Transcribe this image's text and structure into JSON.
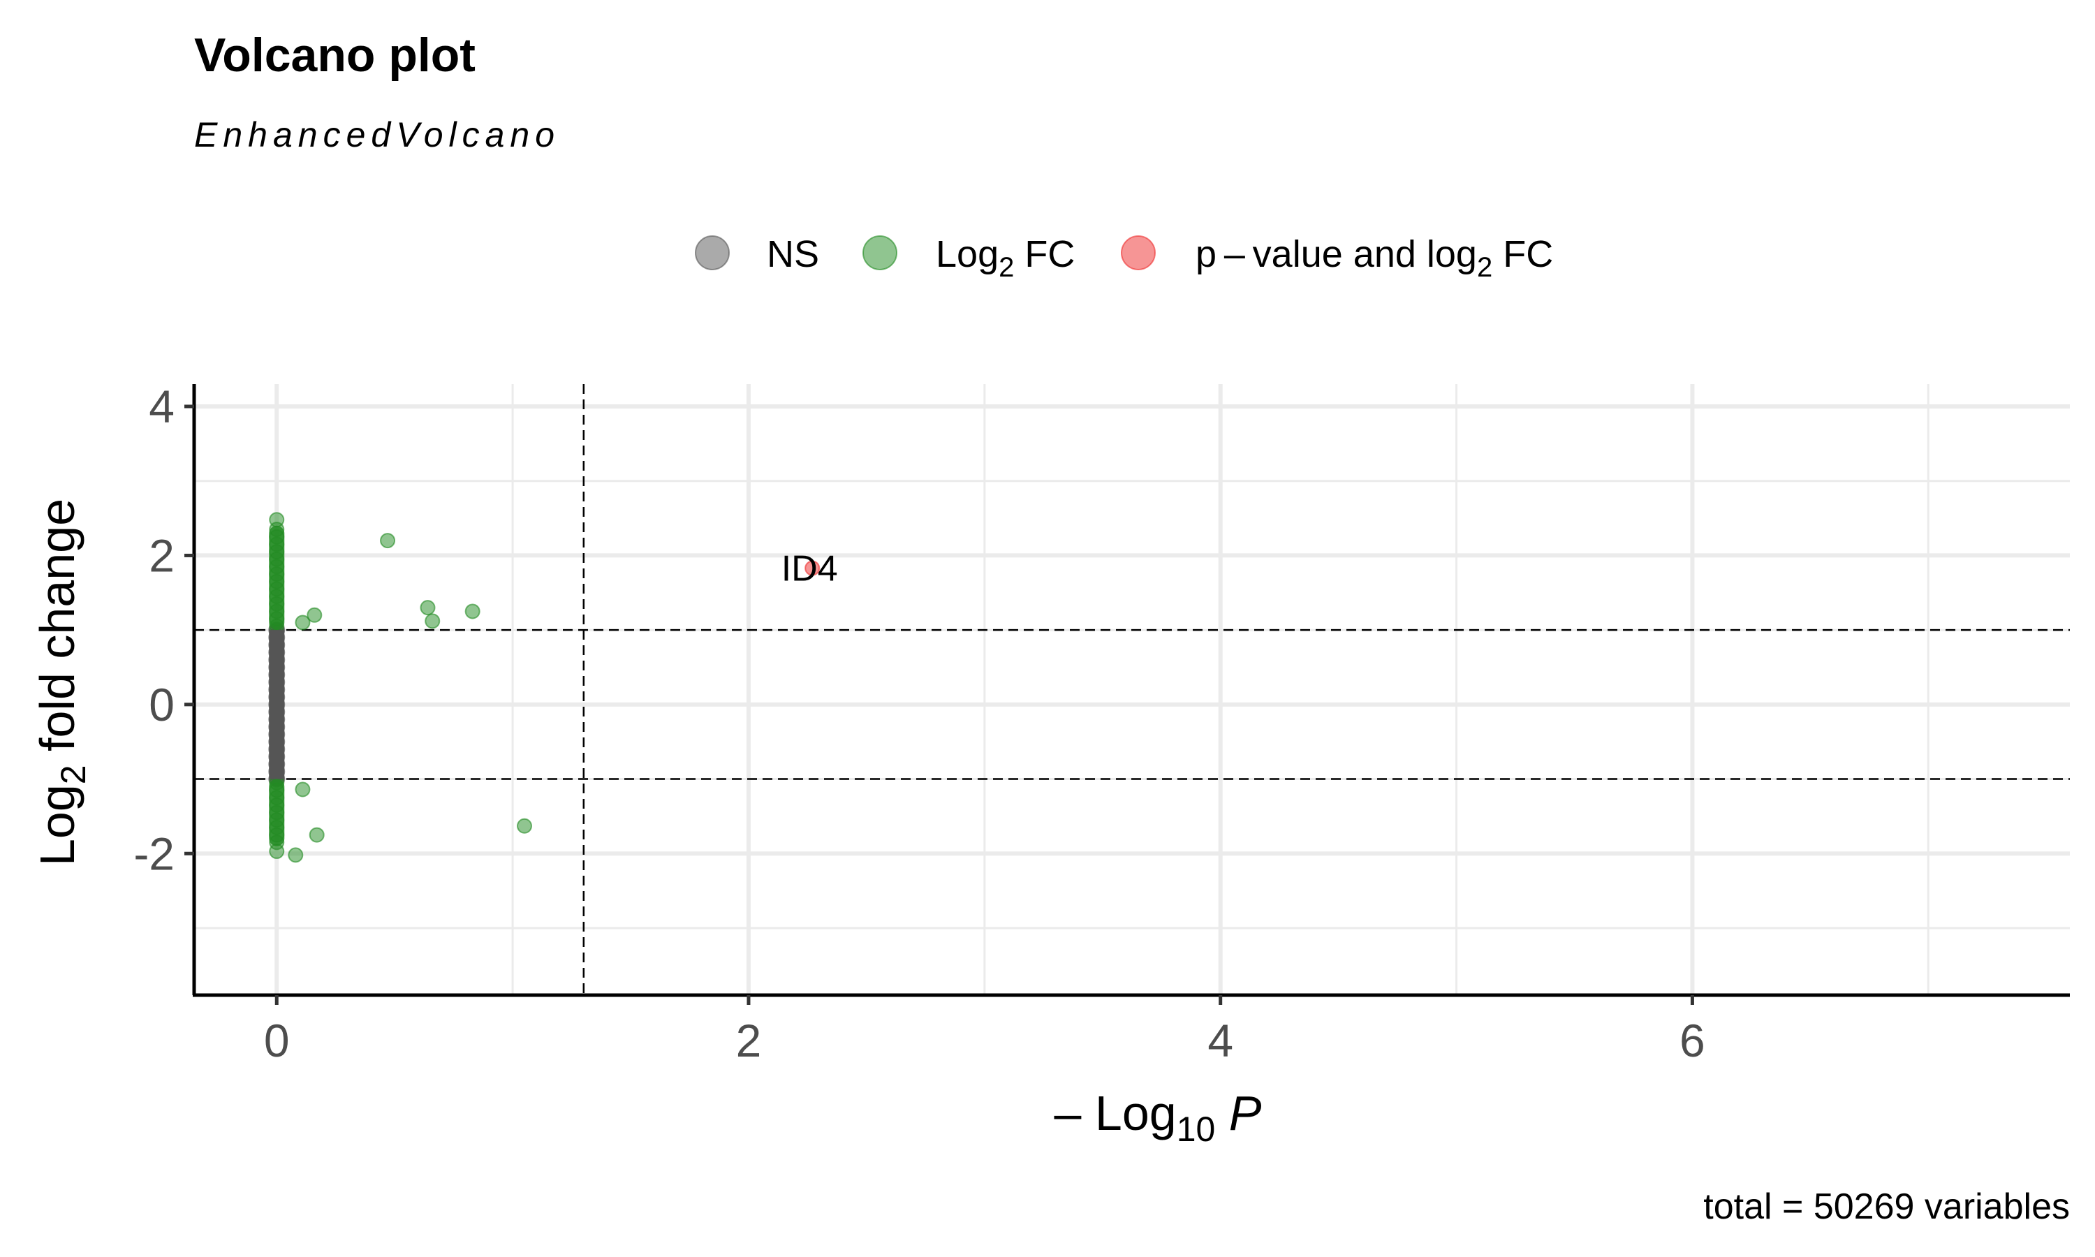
{
  "chart_data": {
    "type": "scatter",
    "title": "Volcano plot",
    "subtitle": "EnhancedVolcano",
    "caption": "total = 50269 variables",
    "xlabel": {
      "main": "Log",
      "sub": "10",
      "italic": "P",
      "prefix": "–"
    },
    "ylabel": {
      "main": "Log",
      "sub": "2",
      "rest": " fold change"
    },
    "xlim": [
      -0.35,
      7.6
    ],
    "ylim": [
      -3.9,
      4.3
    ],
    "x_ticks": [
      {
        "value": 0,
        "label": "0"
      },
      {
        "value": 2,
        "label": "2"
      },
      {
        "value": 4,
        "label": "4"
      },
      {
        "value": 6,
        "label": "6"
      }
    ],
    "y_ticks": [
      {
        "value": -2,
        "label": "-2"
      },
      {
        "value": 0,
        "label": "0"
      },
      {
        "value": 2,
        "label": "2"
      },
      {
        "value": 4,
        "label": "4"
      }
    ],
    "grid": true,
    "legend_position": "top",
    "cutoffs": {
      "fc": [
        -1,
        1
      ],
      "p": 1.301
    },
    "series": [
      {
        "name": "NS",
        "color": "#555555",
        "points": [
          [
            0,
            -1.0
          ],
          [
            0,
            -0.9
          ],
          [
            0,
            -0.8
          ],
          [
            0,
            -0.7
          ],
          [
            0,
            -0.6
          ],
          [
            0,
            -0.5
          ],
          [
            0,
            -0.4
          ],
          [
            0,
            -0.3
          ],
          [
            0,
            -0.2
          ],
          [
            0,
            -0.1
          ],
          [
            0,
            0.0
          ],
          [
            0,
            0.1
          ],
          [
            0,
            0.2
          ],
          [
            0,
            0.3
          ],
          [
            0,
            0.4
          ],
          [
            0,
            0.5
          ],
          [
            0,
            0.6
          ],
          [
            0,
            0.7
          ],
          [
            0,
            0.8
          ],
          [
            0,
            0.9
          ],
          [
            0,
            1.0
          ]
        ]
      },
      {
        "name": "Log2 FC",
        "legend": {
          "main": "Log",
          "sub": "2",
          "rest": " FC"
        },
        "color": "#228b22",
        "points": [
          [
            0,
            1.05
          ],
          [
            0,
            1.15
          ],
          [
            0,
            1.25
          ],
          [
            0,
            1.35
          ],
          [
            0,
            1.45
          ],
          [
            0,
            1.55
          ],
          [
            0,
            1.65
          ],
          [
            0,
            1.75
          ],
          [
            0,
            1.85
          ],
          [
            0,
            1.95
          ],
          [
            0,
            2.05
          ],
          [
            0,
            2.15
          ],
          [
            0,
            2.25
          ],
          [
            0,
            2.35
          ],
          [
            0,
            2.48
          ],
          [
            0,
            -1.05
          ],
          [
            0,
            -1.15
          ],
          [
            0,
            -1.25
          ],
          [
            0,
            -1.35
          ],
          [
            0,
            -1.45
          ],
          [
            0,
            -1.55
          ],
          [
            0,
            -1.65
          ],
          [
            0,
            -1.75
          ],
          [
            0,
            -1.85
          ],
          [
            0,
            -1.97
          ],
          [
            0.47,
            2.2
          ],
          [
            0.64,
            1.3
          ],
          [
            0.66,
            1.12
          ],
          [
            0.83,
            1.25
          ],
          [
            0.16,
            1.2
          ],
          [
            0.11,
            1.1
          ],
          [
            0.11,
            -1.14
          ],
          [
            0.17,
            -1.75
          ],
          [
            0.08,
            -2.02
          ],
          [
            1.05,
            -1.63
          ]
        ]
      },
      {
        "name": "p - value and log2 FC",
        "legend": {
          "main": "p – value and log",
          "sub": "2",
          "rest": " FC"
        },
        "color": "#ee2c2c",
        "points": [
          [
            2.27,
            1.83
          ]
        ],
        "labels": [
          {
            "x": 2.27,
            "y": 1.83,
            "text": "ID4"
          }
        ]
      }
    ]
  }
}
